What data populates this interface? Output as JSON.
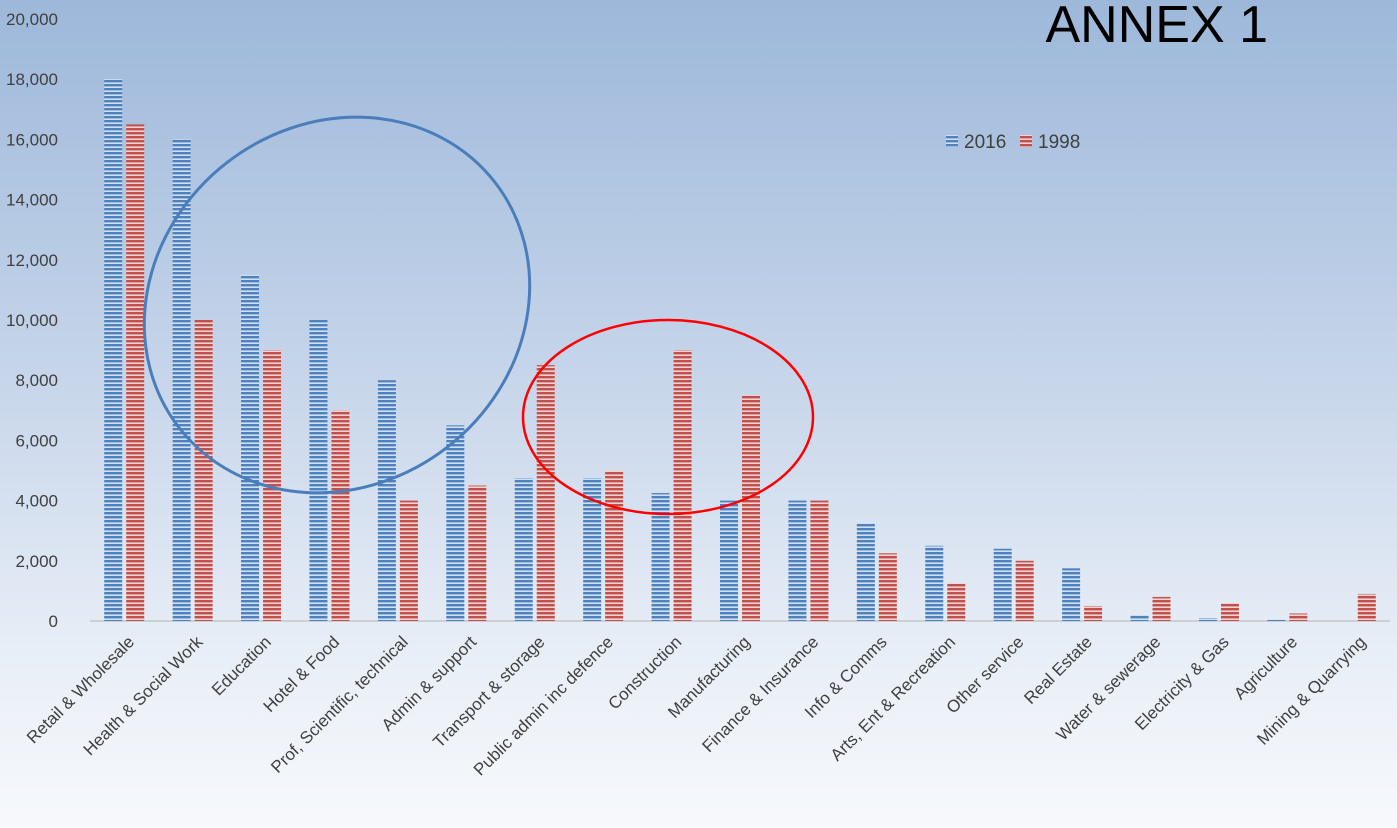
{
  "chart_data": {
    "type": "bar",
    "title": "ANNEX 1",
    "xlabel": "",
    "ylabel": "",
    "ylim": [
      0,
      20000
    ],
    "yticks": [
      "0",
      "2,000",
      "4,000",
      "6,000",
      "8,000",
      "10,000",
      "12,000",
      "14,000",
      "16,000",
      "18,000",
      "20,000"
    ],
    "grid": false,
    "legend_position": "top-right",
    "categories": [
      "Retail & Wholesale",
      "Health & Social Work",
      "Education",
      "Hotel & Food",
      "Prof, Scientific, technical",
      "Admin & support",
      "Transport & storage",
      "Public admin inc defence",
      "Construction",
      "Manufacturing",
      "Finance & Insurance",
      "Info & Comms",
      "Arts, Ent & Recreation",
      "Other service",
      "Real Estate",
      "Water & sewerage",
      "Electricity & Gas",
      "Agriculture",
      "Mining & Quarrying"
    ],
    "series": [
      {
        "name": "2016",
        "color": "#4f81bd",
        "values": [
          18000,
          16000,
          11500,
          10000,
          8000,
          6500,
          4750,
          4750,
          4250,
          4000,
          4000,
          3250,
          2500,
          2400,
          1750,
          200,
          100,
          50,
          0
        ]
      },
      {
        "name": "1998",
        "color": "#c0504d",
        "values": [
          16500,
          10000,
          9000,
          7000,
          4000,
          4500,
          8500,
          5000,
          9000,
          7500,
          4000,
          2250,
          1250,
          2000,
          500,
          800,
          600,
          250,
          900
        ]
      }
    ],
    "annotations": [
      {
        "shape": "ellipse",
        "color": "#4a7ebb",
        "covers": [
          "Health & Social Work",
          "Education",
          "Hotel & Food",
          "Prof, Scientific, technical",
          "Admin & support"
        ]
      },
      {
        "shape": "ellipse",
        "color": "#ff0000",
        "covers": [
          "Transport & storage",
          "Public admin inc defence",
          "Construction",
          "Manufacturing"
        ]
      }
    ]
  }
}
